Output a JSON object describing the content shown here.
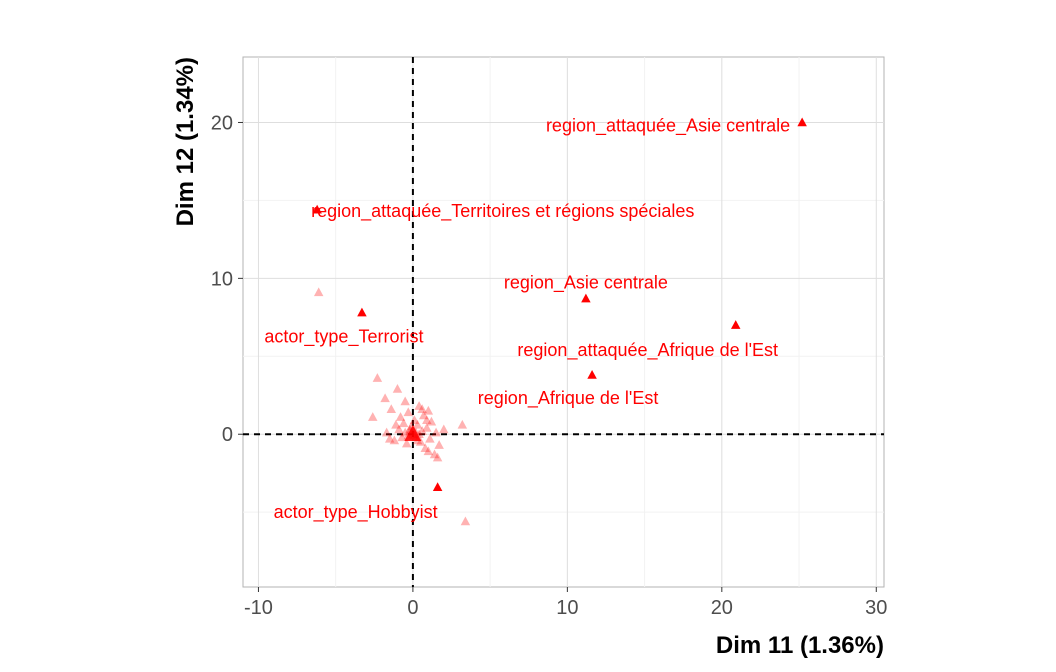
{
  "chart_data": {
    "type": "scatter",
    "xlabel": "Dim 11 (1.36%)",
    "ylabel": "Dim 12 (1.34%)",
    "xlim": [
      -11,
      30.5
    ],
    "ylim": [
      -9.8,
      24.2
    ],
    "x_ticks": [
      -10,
      0,
      10,
      20,
      30
    ],
    "y_ticks": [
      0,
      10,
      20
    ],
    "grid": true,
    "legend": "none",
    "color": "#ff0000",
    "reference_lines": {
      "x": 0,
      "y": 0,
      "style": "dashed"
    },
    "labeled_points": [
      {
        "label": "region_attaquée_Asie centrale",
        "x": 25.2,
        "y": 20.0
      },
      {
        "label": "region_attaquée_Territoires et régions spéciales",
        "x": -6.2,
        "y": 14.4
      },
      {
        "label": "region_Asie centrale",
        "x": 11.2,
        "y": 8.7
      },
      {
        "label": "actor_type_Terrorist",
        "x": -3.3,
        "y": 7.8
      },
      {
        "label": "region_attaquée_Afrique de l'Est",
        "x": 20.9,
        "y": 7.0
      },
      {
        "label": "region_Afrique de l'Est",
        "x": 11.6,
        "y": 3.8
      },
      {
        "label": "actor_type_Hobbyist",
        "x": 1.6,
        "y": -3.4
      }
    ],
    "unlabeled_points": [
      [
        -6.1,
        9.1
      ],
      [
        -2.3,
        3.6
      ],
      [
        -1.8,
        2.3
      ],
      [
        -1.4,
        1.6
      ],
      [
        -1.0,
        2.9
      ],
      [
        -0.8,
        1.1
      ],
      [
        -0.6,
        0.7
      ],
      [
        -0.5,
        2.1
      ],
      [
        -0.3,
        1.4
      ],
      [
        -0.2,
        0.3
      ],
      [
        0.0,
        0.0
      ],
      [
        0.1,
        0.9
      ],
      [
        0.2,
        -0.2
      ],
      [
        0.3,
        0.6
      ],
      [
        0.4,
        1.8
      ],
      [
        0.5,
        -0.5
      ],
      [
        0.6,
        0.2
      ],
      [
        0.7,
        1.2
      ],
      [
        0.8,
        -0.9
      ],
      [
        0.9,
        0.4
      ],
      [
        1.0,
        1.5
      ],
      [
        1.1,
        -0.3
      ],
      [
        1.2,
        0.8
      ],
      [
        1.4,
        -1.3
      ],
      [
        1.5,
        0.1
      ],
      [
        1.7,
        -0.7
      ],
      [
        2.0,
        0.3
      ],
      [
        3.2,
        0.6
      ],
      [
        3.4,
        -5.6
      ],
      [
        -2.6,
        1.1
      ],
      [
        -1.7,
        0.1
      ],
      [
        -1.2,
        -0.4
      ],
      [
        -0.9,
        0.3
      ],
      [
        -0.7,
        -0.2
      ],
      [
        -0.4,
        -0.6
      ],
      [
        -0.1,
        0.5
      ],
      [
        0.2,
        0.1
      ],
      [
        -0.5,
        0.1
      ],
      [
        0.3,
        -0.4
      ],
      [
        1.6,
        -1.5
      ],
      [
        1.0,
        -1.1
      ],
      [
        -1.5,
        -0.3
      ],
      [
        0.6,
        1.6
      ],
      [
        -0.3,
        -0.1
      ],
      [
        0.9,
        0.9
      ],
      [
        -1.1,
        0.6
      ],
      [
        0.4,
        0.0
      ],
      [
        -0.2,
        0.2
      ],
      [
        0.1,
        -0.1
      ],
      [
        0.0,
        0.3
      ]
    ]
  }
}
